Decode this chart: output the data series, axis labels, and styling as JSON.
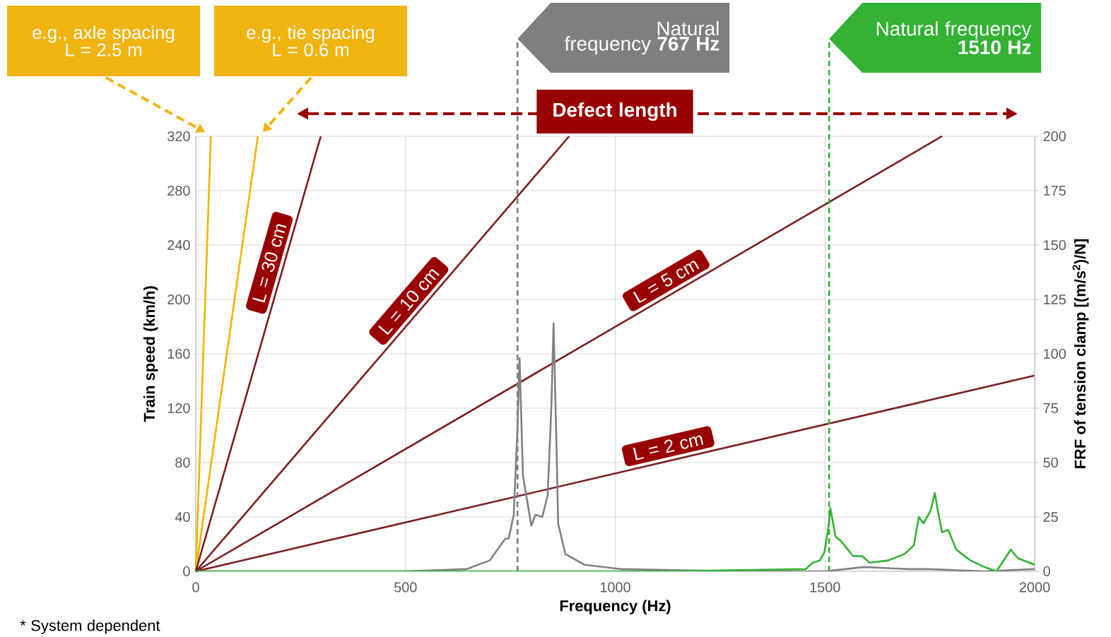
{
  "chart_data": {
    "type": "line",
    "xlabel": "Frequency (Hz)",
    "ylabel": "Train speed (km/h)",
    "y2label": "FRF of tension clamp [(m/s$^{2}$)/N]",
    "xlim": [
      0,
      2000
    ],
    "xticks": [
      0,
      500,
      1000,
      1500,
      2000
    ],
    "ylim": [
      0,
      320
    ],
    "yticks": [
      0,
      40,
      80,
      120,
      160,
      200,
      240,
      280,
      320
    ],
    "y2lim": [
      0,
      200
    ],
    "y2ticks": [
      0,
      25,
      50,
      75,
      100,
      125,
      150,
      175,
      200
    ],
    "grid": true,
    "series": [
      {
        "color": "#f0b400",
        "x": [
          0,
          36
        ],
        "values": [
          0,
          320
        ]
      },
      {
        "color": "#f0b400",
        "x": [
          0,
          148
        ],
        "values": [
          0,
          320
        ]
      },
      {
        "name": "L = 30 cm",
        "color": "#7b1e1e",
        "x": [
          0,
          298
        ],
        "values": [
          0,
          320
        ]
      },
      {
        "name": "L = 10 cm",
        "color": "#7b1e1e",
        "x": [
          0,
          890
        ],
        "values": [
          0,
          320
        ]
      },
      {
        "name": "L = 5 cm",
        "color": "#7b1e1e",
        "x": [
          0,
          1779
        ],
        "values": [
          0,
          320
        ]
      },
      {
        "name": "L = 2 cm",
        "color": "#7b1e1e",
        "x": [
          0,
          2000
        ],
        "values": [
          0,
          144
        ]
      },
      {
        "color": "#808080",
        "axis": "y2",
        "x": [
          0,
          500,
          645,
          701,
          738,
          746,
          758,
          767,
          772,
          780,
          800,
          810,
          826,
          839,
          848,
          853,
          859,
          864,
          881,
          927,
          1016,
          1300,
          1500,
          1594,
          1700,
          1746,
          1880,
          2000
        ],
        "values": [
          0,
          0,
          1,
          5,
          15,
          15,
          26,
          66,
          98,
          44,
          21,
          26,
          25,
          35,
          77,
          114,
          66,
          22,
          8,
          3,
          1,
          0,
          0,
          2,
          1,
          1,
          0,
          1
        ]
      },
      {
        "color": "#33b233",
        "axis": "y2",
        "x": [
          0,
          1120,
          1454,
          1471,
          1488,
          1499,
          1508,
          1513,
          1525,
          1538,
          1567,
          1589,
          1606,
          1651,
          1690,
          1712,
          1724,
          1735,
          1752,
          1762,
          1769,
          1779,
          1794,
          1813,
          1847,
          1880,
          1909,
          1943,
          1960,
          2000
        ],
        "values": [
          0,
          0,
          1,
          4,
          5,
          9,
          20,
          29,
          16,
          14,
          7,
          7,
          4,
          5,
          8,
          12,
          25,
          22,
          28,
          36,
          28,
          18,
          19,
          10,
          5,
          2,
          0,
          10,
          6,
          3
        ]
      }
    ],
    "ref_lines": [
      {
        "axis": "x",
        "value": 767,
        "label": "Natural frequency **767 Hz**",
        "color": "#7f7f7f",
        "line_style": "dashed"
      },
      {
        "axis": "x",
        "value": 1510,
        "label": "Natural frequency **1510 Hz**",
        "color": "#33b233",
        "line_style": "dashed"
      }
    ],
    "annotations": [
      "e.g., axle spacing L = 2.5 m",
      "e.g., tie spacing L = 0.6 m",
      "Defect length",
      "* System dependent"
    ]
  }
}
